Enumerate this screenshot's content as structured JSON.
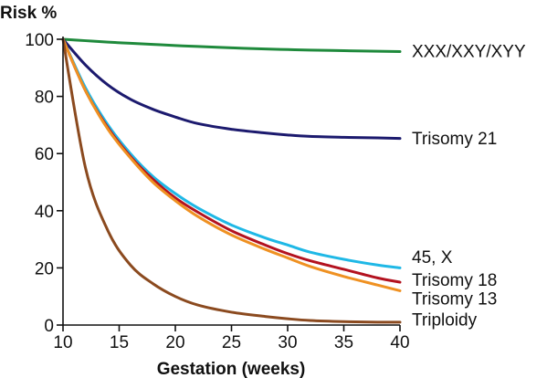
{
  "chart_data": {
    "type": "line",
    "title": "",
    "ylabel": "Risk %",
    "xlabel": "Gestation (weeks)",
    "xlim": [
      10,
      40
    ],
    "ylim": [
      0,
      100
    ],
    "x_ticks": [
      "10",
      "15",
      "20",
      "25",
      "30",
      "35",
      "40"
    ],
    "y_ticks": [
      "0",
      "20",
      "40",
      "60",
      "80",
      "100"
    ],
    "grid": false,
    "legend": "labels at right end of each line",
    "x": [
      10,
      12,
      14,
      16,
      18,
      20,
      22,
      25,
      28,
      30,
      32,
      35,
      38,
      40
    ],
    "series": [
      {
        "name": "XXX/XXY/XYY",
        "color": "#1f8a3c",
        "values": [
          100,
          99.5,
          99,
          98.6,
          98.2,
          97.8,
          97.5,
          97,
          96.6,
          96.4,
          96.2,
          96,
          95.8,
          95.7
        ]
      },
      {
        "name": "Trisomy 21",
        "color": "#1c1a6e",
        "values": [
          100,
          91,
          84,
          79,
          75.5,
          72.8,
          70.5,
          68.5,
          67.2,
          66.5,
          66,
          65.7,
          65.5,
          65.3
        ]
      },
      {
        "name": "45, X",
        "color": "#1fb8e6",
        "values": [
          100,
          83,
          70,
          60,
          52,
          46,
          41,
          35,
          30.5,
          28,
          25.5,
          23,
          21,
          20
        ]
      },
      {
        "name": "Trisomy 18",
        "color": "#b3121f",
        "values": [
          100,
          82,
          69,
          59,
          51,
          44.5,
          39.5,
          33,
          28,
          25,
          22.5,
          19.5,
          16.5,
          15
        ]
      },
      {
        "name": "Trisomy 13",
        "color": "#ef9122",
        "values": [
          100,
          82,
          68.5,
          58.5,
          50,
          43.5,
          38,
          31.5,
          26.5,
          23.5,
          20.5,
          17,
          14,
          12
        ]
      },
      {
        "name": "Triploidy",
        "color": "#8b4a1f",
        "values": [
          100,
          55,
          33,
          21,
          14.5,
          10,
          7,
          4.5,
          3,
          2.2,
          1.6,
          1.2,
          1,
          1
        ]
      }
    ],
    "label_y_values": [
      96,
      65.5,
      24,
      16,
      9.5,
      2
    ]
  }
}
